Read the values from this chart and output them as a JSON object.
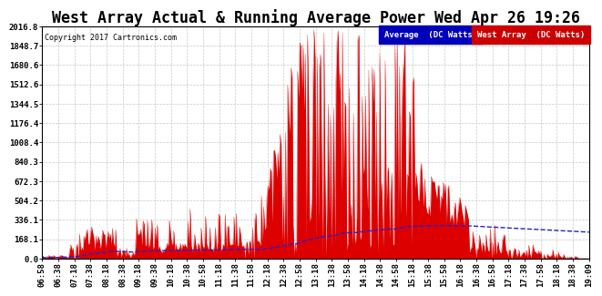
{
  "title": "West Array Actual & Running Average Power Wed Apr 26 19:26",
  "copyright": "Copyright 2017 Cartronics.com",
  "yticks": [
    0.0,
    168.1,
    336.1,
    504.2,
    672.3,
    840.3,
    1008.4,
    1176.4,
    1344.5,
    1512.6,
    1680.6,
    1848.7,
    2016.8
  ],
  "ymax": 2016.8,
  "ymin": 0.0,
  "legend_labels": [
    "Average  (DC Watts)",
    "West Array  (DC Watts)"
  ],
  "bg_color": "#ffffff",
  "plot_bg_color": "#ffffff",
  "grid_color": "#c8c8c8",
  "area_color": "#dd0000",
  "line_color": "#2222cc",
  "title_fontsize": 12,
  "tick_fontsize": 6.5,
  "xtick_labels": [
    "06:58",
    "06:38",
    "07:18",
    "07:38",
    "08:18",
    "08:38",
    "09:18",
    "09:38",
    "10:18",
    "10:38",
    "10:58",
    "11:18",
    "11:38",
    "11:58",
    "12:18",
    "12:38",
    "12:58",
    "13:18",
    "13:38",
    "13:58",
    "14:18",
    "14:38",
    "14:58",
    "15:18",
    "15:38",
    "15:58",
    "16:18",
    "16:38",
    "16:58",
    "17:18",
    "17:38",
    "17:58",
    "18:18",
    "18:38",
    "19:09"
  ]
}
